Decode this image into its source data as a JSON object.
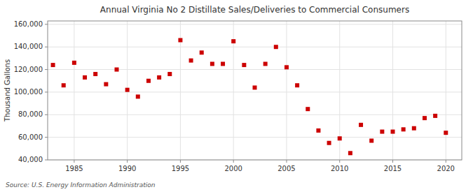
{
  "chart_data": {
    "type": "scatter",
    "title": "Annual Virginia No 2 Distillate Sales/Deliveries to Commercial Consumers",
    "y_label": "Thousand Gallons",
    "annotation": "Source: U.S. Energy Information Administration",
    "color": "#cc0000",
    "marker": "square",
    "grid": true,
    "x": [
      1983,
      1984,
      1985,
      1986,
      1987,
      1988,
      1989,
      1990,
      1991,
      1992,
      1993,
      1994,
      1995,
      1996,
      1997,
      1998,
      1999,
      2000,
      2001,
      2002,
      2003,
      2004,
      2005,
      2006,
      2007,
      2008,
      2009,
      2010,
      2011,
      2012,
      2013,
      2014,
      2015,
      2016,
      2017,
      2018,
      2019,
      2020
    ],
    "values": [
      124000,
      106000,
      126000,
      113000,
      116000,
      107000,
      120000,
      102000,
      96000,
      110000,
      113000,
      116000,
      146000,
      128000,
      135000,
      125000,
      125000,
      145000,
      124000,
      104000,
      125000,
      140000,
      122000,
      106000,
      85000,
      66000,
      55000,
      59000,
      46000,
      71000,
      57000,
      65000,
      65000,
      67000,
      68000,
      77000,
      79000,
      64000
    ],
    "xlim": [
      1982.5,
      2021.5
    ],
    "xticks": [
      1985,
      1990,
      1995,
      2000,
      2005,
      2010,
      2015,
      2020
    ],
    "ylim": [
      40000,
      163000
    ],
    "yticks": [
      {
        "value": 40000,
        "label": "40,000"
      },
      {
        "value": 60000,
        "label": "60,000"
      },
      {
        "value": 80000,
        "label": "80,000"
      },
      {
        "value": 100000,
        "label": "100,000"
      },
      {
        "value": 120000,
        "label": "120,000"
      },
      {
        "value": 140000,
        "label": "140,000"
      },
      {
        "value": 160000,
        "label": "160,000"
      }
    ]
  }
}
